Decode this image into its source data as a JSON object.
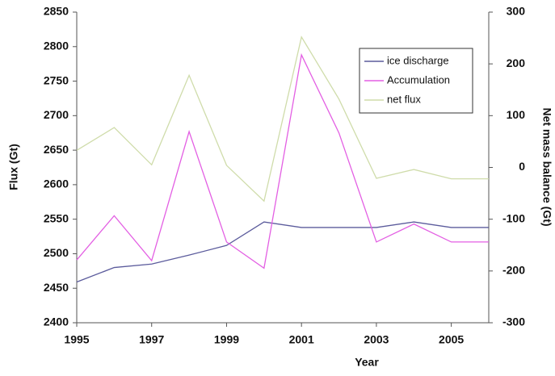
{
  "chart_data": {
    "type": "line",
    "x_label": "Year",
    "y_label": "Flux (Gt)",
    "y2_label": "Net  mass balance (Gt)",
    "x": [
      1995,
      1996,
      1997,
      1998,
      1999,
      2000,
      2001,
      2002,
      2003,
      2004,
      2005,
      2006
    ],
    "series": [
      {
        "name": "ice discharge",
        "color": "#5b5b9c",
        "values": [
          2459,
          2480,
          2485,
          2498,
          2512,
          2546,
          2538,
          2538,
          2538,
          2546,
          2538,
          2538
        ]
      },
      {
        "name": "Accumulation",
        "color": "#e35fe3",
        "values": [
          2491,
          2555,
          2490,
          2677,
          2517,
          2479,
          2788,
          2675,
          2517,
          2543,
          2517,
          2517
        ]
      },
      {
        "name": "net flux",
        "color": "#cfdcaa",
        "axis": "y2",
        "values": [
          33,
          77,
          5,
          178,
          4,
          -65,
          252,
          132,
          -21,
          -4,
          -22,
          -22
        ]
      }
    ],
    "xlim": [
      1995,
      2006
    ],
    "xticks": [
      1995,
      1997,
      1999,
      2001,
      2003,
      2005
    ],
    "ylim": [
      2400,
      2850
    ],
    "yticks": [
      2400,
      2450,
      2500,
      2550,
      2600,
      2650,
      2700,
      2750,
      2800,
      2850
    ],
    "y2lim": [
      -300,
      300
    ],
    "y2ticks": [
      -300,
      -200,
      -100,
      0,
      100,
      200,
      300
    ],
    "legend": "upper right",
    "grid": false
  }
}
